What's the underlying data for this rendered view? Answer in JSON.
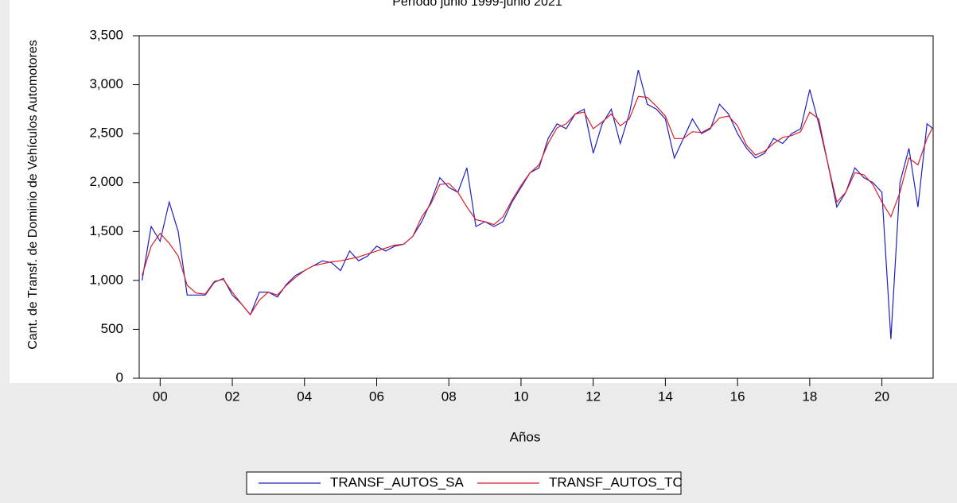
{
  "chart_data": {
    "type": "line",
    "title": "Período junio 1999-junio 2021",
    "x_label": "Años",
    "y_label": "Cant. de Transf. de Dominio de Vehículos Automotores",
    "x": [
      1999.5,
      1999.75,
      2000,
      2000.25,
      2000.5,
      2000.75,
      2001,
      2001.25,
      2001.5,
      2001.75,
      2002,
      2002.25,
      2002.5,
      2002.75,
      2003,
      2003.25,
      2003.5,
      2003.75,
      2004,
      2004.25,
      2004.5,
      2004.75,
      2005,
      2005.25,
      2005.5,
      2005.75,
      2006,
      2006.25,
      2006.5,
      2006.75,
      2007,
      2007.25,
      2007.5,
      2007.75,
      2008,
      2008.25,
      2008.5,
      2008.75,
      2009,
      2009.25,
      2009.5,
      2009.75,
      2010,
      2010.25,
      2010.5,
      2010.75,
      2011,
      2011.25,
      2011.5,
      2011.75,
      2012,
      2012.25,
      2012.5,
      2012.75,
      2013,
      2013.25,
      2013.5,
      2013.75,
      2014,
      2014.25,
      2014.5,
      2014.75,
      2015,
      2015.25,
      2015.5,
      2015.75,
      2016,
      2016.25,
      2016.5,
      2016.75,
      2017,
      2017.25,
      2017.5,
      2017.75,
      2018,
      2018.25,
      2018.5,
      2018.75,
      2019,
      2019.25,
      2019.5,
      2019.75,
      2020,
      2020.25,
      2020.5,
      2020.75,
      2021,
      2021.25,
      2021.42
    ],
    "series": [
      {
        "name": "TRANSF_AUTOS_SA",
        "color": "#1f1fbf",
        "values": [
          1000,
          1550,
          1400,
          1800,
          1500,
          850,
          850,
          850,
          980,
          1020,
          850,
          760,
          650,
          880,
          880,
          830,
          960,
          1050,
          1100,
          1150,
          1200,
          1180,
          1100,
          1300,
          1200,
          1250,
          1350,
          1300,
          1350,
          1370,
          1450,
          1600,
          1800,
          2050,
          1950,
          1900,
          2150,
          1550,
          1600,
          1550,
          1600,
          1800,
          1950,
          2100,
          2150,
          2450,
          2600,
          2550,
          2700,
          2750,
          2300,
          2600,
          2750,
          2400,
          2700,
          3150,
          2800,
          2750,
          2650,
          2250,
          2450,
          2650,
          2500,
          2550,
          2800,
          2700,
          2500,
          2350,
          2250,
          2300,
          2450,
          2400,
          2500,
          2550,
          2950,
          2600,
          2200,
          1750,
          1900,
          2150,
          2050,
          2000,
          1900,
          400,
          2000,
          2350,
          1750,
          2600,
          2550
        ]
      },
      {
        "name": "TRANSF_AUTOS_TC",
        "color": "#d81f2a",
        "values": [
          1050,
          1350,
          1480,
          1380,
          1250,
          950,
          870,
          860,
          990,
          1010,
          880,
          760,
          650,
          800,
          880,
          850,
          950,
          1030,
          1100,
          1150,
          1170,
          1190,
          1200,
          1220,
          1240,
          1270,
          1300,
          1330,
          1360,
          1370,
          1450,
          1650,
          1780,
          1980,
          1990,
          1900,
          1750,
          1620,
          1600,
          1570,
          1650,
          1820,
          1970,
          2100,
          2180,
          2400,
          2560,
          2600,
          2700,
          2720,
          2550,
          2620,
          2700,
          2580,
          2650,
          2880,
          2870,
          2780,
          2680,
          2450,
          2450,
          2520,
          2510,
          2560,
          2660,
          2680,
          2580,
          2380,
          2280,
          2320,
          2400,
          2460,
          2480,
          2520,
          2720,
          2650,
          2200,
          1800,
          1900,
          2100,
          2080,
          1980,
          1800,
          1650,
          1900,
          2250,
          2180,
          2450,
          2570
        ]
      }
    ],
    "xlim": [
      1999.42,
      2021.42
    ],
    "xticks": [
      {
        "value": 2000,
        "label": "00"
      },
      {
        "value": 2002,
        "label": "02"
      },
      {
        "value": 2004,
        "label": "04"
      },
      {
        "value": 2006,
        "label": "06"
      },
      {
        "value": 2008,
        "label": "08"
      },
      {
        "value": 2010,
        "label": "10"
      },
      {
        "value": 2012,
        "label": "12"
      },
      {
        "value": 2014,
        "label": "14"
      },
      {
        "value": 2016,
        "label": "16"
      },
      {
        "value": 2018,
        "label": "18"
      },
      {
        "value": 2020,
        "label": "20"
      }
    ],
    "ylim": [
      0,
      3500
    ],
    "yticks": [
      0,
      {
        "value": 500,
        "label": "500"
      },
      {
        "value": 1000,
        "label": "1,000"
      },
      {
        "value": 1500,
        "label": "1,500"
      },
      {
        "value": 2000,
        "label": "2,000"
      },
      {
        "value": 2500,
        "label": "2,500"
      },
      {
        "value": 3000,
        "label": "3,000"
      },
      {
        "value": 3500,
        "label": "3,500"
      }
    ],
    "legend": "bottom"
  }
}
